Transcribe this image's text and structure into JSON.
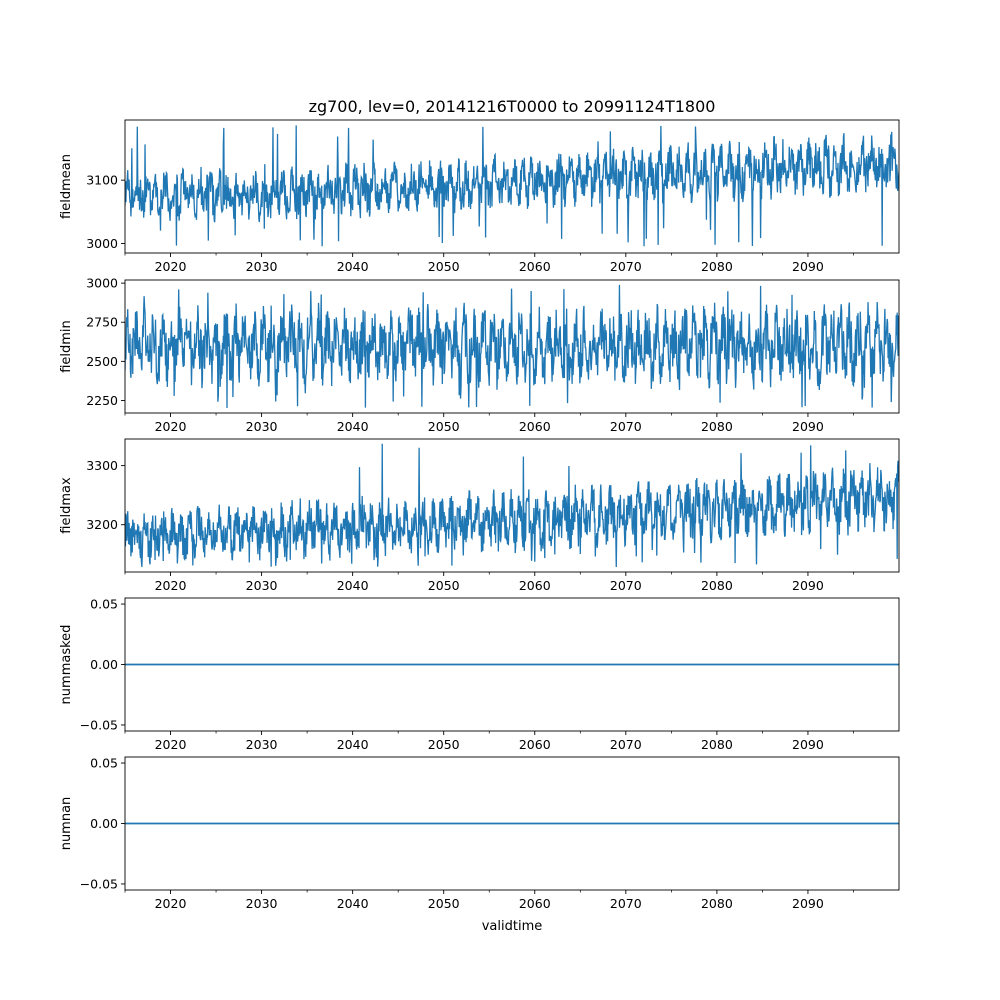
{
  "figure": {
    "title": "zg700, lev=0, 20141216T0000 to 20991124T1800",
    "xlabel": "validtime",
    "line_color": "#1f77b4"
  },
  "chart_data": [
    {
      "type": "line",
      "ylabel": "fieldmean",
      "xlim": [
        2015.0,
        2100.0
      ],
      "ylim": [
        2985,
        3195
      ],
      "yticks": [
        3000,
        3100
      ],
      "ytick_labels": [
        "3000",
        "3100"
      ],
      "x_ticks": [
        2020,
        2030,
        2040,
        2050,
        2060,
        2070,
        2080,
        2090
      ],
      "x_tick_labels": [
        "2020",
        "2030",
        "2040",
        "2050",
        "2060",
        "2070",
        "2080",
        "2090"
      ],
      "series": [
        {
          "x": [
            2015,
            2025,
            2035,
            2045,
            2055,
            2065,
            2075,
            2085,
            2095,
            2100
          ],
          "y_typical_low": [
            3040,
            3040,
            3045,
            3050,
            3055,
            3060,
            3065,
            3070,
            3075,
            3078
          ],
          "y_mean": [
            3075,
            3078,
            3082,
            3088,
            3095,
            3102,
            3110,
            3118,
            3124,
            3128
          ],
          "y_typical_high": [
            3115,
            3118,
            3122,
            3128,
            3133,
            3140,
            3150,
            3158,
            3165,
            3168
          ],
          "y_min_observed": 2995,
          "y_max_observed": 3188
        }
      ]
    },
    {
      "type": "line",
      "ylabel": "fieldmin",
      "xlim": [
        2015.0,
        2100.0
      ],
      "ylim": [
        2170,
        3020
      ],
      "yticks": [
        2250,
        2500,
        2750,
        3000
      ],
      "ytick_labels": [
        "2250",
        "2500",
        "2750",
        "3000"
      ],
      "x_ticks": [
        2020,
        2030,
        2040,
        2050,
        2060,
        2070,
        2080,
        2090
      ],
      "x_tick_labels": [
        "2020",
        "2030",
        "2040",
        "2050",
        "2060",
        "2070",
        "2080",
        "2090"
      ],
      "series": [
        {
          "x": [
            2015,
            2025,
            2035,
            2045,
            2055,
            2065,
            2075,
            2085,
            2095,
            2100
          ],
          "y_typical_low": [
            2400,
            2400,
            2400,
            2400,
            2400,
            2400,
            2400,
            2400,
            2400,
            2400
          ],
          "y_mean": [
            2600,
            2600,
            2600,
            2600,
            2600,
            2600,
            2600,
            2600,
            2600,
            2600
          ],
          "y_typical_high": [
            2850,
            2855,
            2860,
            2865,
            2870,
            2870,
            2875,
            2880,
            2880,
            2880
          ],
          "y_min_observed": 2200,
          "y_max_observed": 2990
        }
      ]
    },
    {
      "type": "line",
      "ylabel": "fieldmax",
      "xlim": [
        2015.0,
        2100.0
      ],
      "ylim": [
        3120,
        3345
      ],
      "yticks": [
        3200,
        3300
      ],
      "ytick_labels": [
        "3200",
        "3300"
      ],
      "x_ticks": [
        2020,
        2030,
        2040,
        2050,
        2060,
        2070,
        2080,
        2090
      ],
      "x_tick_labels": [
        "2020",
        "2030",
        "2040",
        "2050",
        "2060",
        "2070",
        "2080",
        "2090"
      ],
      "series": [
        {
          "x": [
            2015,
            2025,
            2035,
            2045,
            2055,
            2065,
            2075,
            2085,
            2095,
            2100
          ],
          "y_typical_low": [
            3150,
            3150,
            3155,
            3160,
            3165,
            3170,
            3180,
            3185,
            3195,
            3200
          ],
          "y_mean": [
            3180,
            3185,
            3192,
            3198,
            3205,
            3212,
            3222,
            3232,
            3242,
            3248
          ],
          "y_typical_high": [
            3230,
            3235,
            3245,
            3250,
            3260,
            3265,
            3280,
            3290,
            3300,
            3305
          ],
          "y_min_observed": 3128,
          "y_max_observed": 3340
        }
      ]
    },
    {
      "type": "line",
      "ylabel": "nummasked",
      "xlim": [
        2015.0,
        2100.0
      ],
      "ylim": [
        -0.055,
        0.055
      ],
      "yticks": [
        -0.05,
        0.0,
        0.05
      ],
      "ytick_labels": [
        "−0.05",
        "0.00",
        "0.05"
      ],
      "x_ticks": [
        2020,
        2030,
        2040,
        2050,
        2060,
        2070,
        2080,
        2090
      ],
      "x_tick_labels": [
        "2020",
        "2030",
        "2040",
        "2050",
        "2060",
        "2070",
        "2080",
        "2090"
      ],
      "series": [
        {
          "x": [
            2015.0,
            2100.0
          ],
          "y": [
            0.0,
            0.0
          ]
        }
      ]
    },
    {
      "type": "line",
      "ylabel": "numnan",
      "xlim": [
        2015.0,
        2100.0
      ],
      "ylim": [
        -0.055,
        0.055
      ],
      "yticks": [
        -0.05,
        0.0,
        0.05
      ],
      "ytick_labels": [
        "−0.05",
        "0.00",
        "0.05"
      ],
      "x_ticks": [
        2020,
        2030,
        2040,
        2050,
        2060,
        2070,
        2080,
        2090
      ],
      "x_tick_labels": [
        "2020",
        "2030",
        "2040",
        "2050",
        "2060",
        "2070",
        "2080",
        "2090"
      ],
      "series": [
        {
          "x": [
            2015.0,
            2100.0
          ],
          "y": [
            0.0,
            0.0
          ]
        }
      ]
    }
  ]
}
